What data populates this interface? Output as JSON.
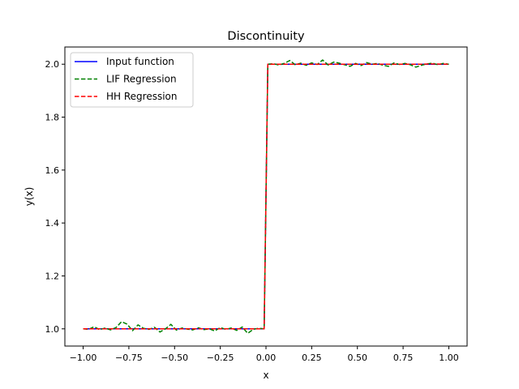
{
  "chart_data": {
    "type": "line",
    "title": "Discontinuity",
    "xlabel": "x",
    "ylabel": "y(x)",
    "xlim": [
      -1.1,
      1.1
    ],
    "ylim": [
      0.935,
      2.065
    ],
    "xticks": [
      -1.0,
      -0.75,
      -0.5,
      -0.25,
      0.0,
      0.25,
      0.5,
      0.75,
      1.0
    ],
    "xtick_labels": [
      "−1.00",
      "−0.75",
      "−0.50",
      "−0.25",
      "0.00",
      "0.25",
      "0.50",
      "0.75",
      "1.00"
    ],
    "yticks": [
      1.0,
      1.2,
      1.4,
      1.6,
      1.8,
      2.0
    ],
    "ytick_labels": [
      "1.0",
      "1.2",
      "1.4",
      "1.6",
      "1.8",
      "2.0"
    ],
    "legend_position": "upper-left",
    "series": [
      {
        "name": "Input function",
        "color": "#0000ff",
        "style": "solid",
        "x": [
          -1.0,
          -0.01,
          0.01,
          1.0
        ],
        "y": [
          1.0,
          1.0,
          2.0,
          2.0
        ]
      },
      {
        "name": "LIF Regression",
        "color": "#008000",
        "style": "dashed",
        "x": [
          -1.0,
          -0.97,
          -0.94,
          -0.91,
          -0.88,
          -0.85,
          -0.82,
          -0.79,
          -0.76,
          -0.73,
          -0.7,
          -0.67,
          -0.64,
          -0.61,
          -0.58,
          -0.55,
          -0.52,
          -0.49,
          -0.46,
          -0.43,
          -0.4,
          -0.37,
          -0.34,
          -0.31,
          -0.28,
          -0.25,
          -0.22,
          -0.19,
          -0.16,
          -0.13,
          -0.1,
          -0.07,
          -0.04,
          -0.01,
          0.01,
          0.04,
          0.07,
          0.1,
          0.13,
          0.16,
          0.19,
          0.22,
          0.25,
          0.28,
          0.31,
          0.34,
          0.37,
          0.4,
          0.43,
          0.46,
          0.49,
          0.52,
          0.55,
          0.58,
          0.61,
          0.64,
          0.67,
          0.7,
          0.73,
          0.76,
          0.79,
          0.82,
          0.85,
          0.88,
          0.91,
          0.94,
          0.97,
          1.0
        ],
        "y": [
          1.0,
          0.998,
          1.008,
          0.997,
          1.003,
          0.996,
          1.005,
          1.027,
          1.018,
          0.993,
          1.015,
          1.002,
          0.998,
          1.006,
          0.988,
          1.0,
          1.017,
          0.995,
          1.003,
          0.999,
          0.996,
          1.004,
          0.997,
          1.0,
          0.992,
          1.005,
          0.998,
          1.003,
          0.994,
          1.007,
          0.983,
          0.998,
          1.002,
          1.0,
          2.0,
          2.002,
          1.997,
          2.003,
          2.014,
          1.998,
          2.004,
          1.996,
          2.005,
          1.999,
          2.016,
          1.997,
          2.008,
          2.004,
          1.998,
          1.992,
          2.003,
          1.995,
          2.006,
          2.0,
          2.003,
          1.996,
          1.992,
          2.005,
          1.999,
          2.003,
          1.998,
          1.989,
          1.996,
          2.001,
          2.004,
          1.998,
          2.003,
          2.0
        ]
      },
      {
        "name": "HH Regression",
        "color": "#ff0000",
        "style": "dashed",
        "x": [
          -1.0,
          -0.5,
          -0.01,
          0.01,
          0.5,
          0.85,
          0.9,
          1.0
        ],
        "y": [
          1.0,
          1.0,
          1.0,
          2.0,
          2.0,
          2.0,
          2.001,
          2.0
        ]
      }
    ]
  }
}
